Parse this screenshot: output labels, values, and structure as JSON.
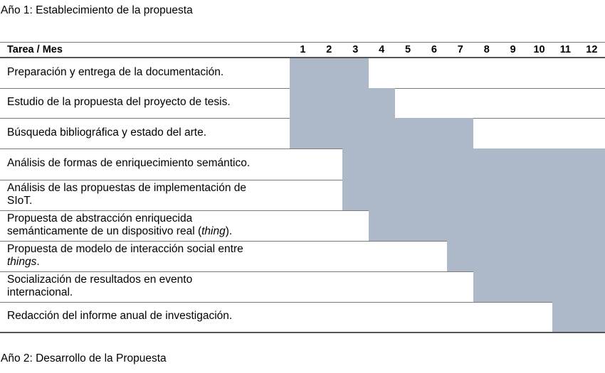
{
  "heading_year1": "Año 1: Establecimiento de la propuesta",
  "heading_year2": "Año 2: Desarrollo de la Propuesta",
  "table": {
    "header_task": "Tarea / Mes",
    "months": [
      "1",
      "2",
      "3",
      "4",
      "5",
      "6",
      "7",
      "8",
      "9",
      "10",
      "11",
      "12"
    ],
    "rows": [
      {
        "lines": [
          "Preparación y entrega de la documentación."
        ],
        "start_month": 1,
        "end_month": 3
      },
      {
        "lines": [
          "Estudio de la propuesta del proyecto de tesis."
        ],
        "start_month": 1,
        "end_month": 4
      },
      {
        "lines": [
          "Búsqueda bibliográfica y estado del arte."
        ],
        "start_month": 1,
        "end_month": 7
      },
      {
        "lines": [
          "Análisis de formas de enriquecimiento semántico."
        ],
        "start_month": 3,
        "end_month": 12
      },
      {
        "lines": [
          "Análisis de las propuestas de implementación de",
          "SIoT."
        ],
        "start_month": 3,
        "end_month": 12
      },
      {
        "lines": [
          "Propuesta de abstracción enriquecida",
          "semánticamente de un dispositivo real ("
        ],
        "italic": "thing",
        "tail": ").",
        "start_month": 4,
        "end_month": 12
      },
      {
        "lines": [
          "Propuesta de modelo de interacción social entre"
        ],
        "italic": "things",
        "tail": ".",
        "italic_on_new_line": true,
        "start_month": 7,
        "end_month": 12
      },
      {
        "lines": [
          "Socialización de resultados en evento",
          "internacional."
        ],
        "start_month": 8,
        "end_month": 12
      },
      {
        "lines": [
          "Redacción del informe anual de investigación."
        ],
        "start_month": 11,
        "end_month": 12
      }
    ]
  }
}
